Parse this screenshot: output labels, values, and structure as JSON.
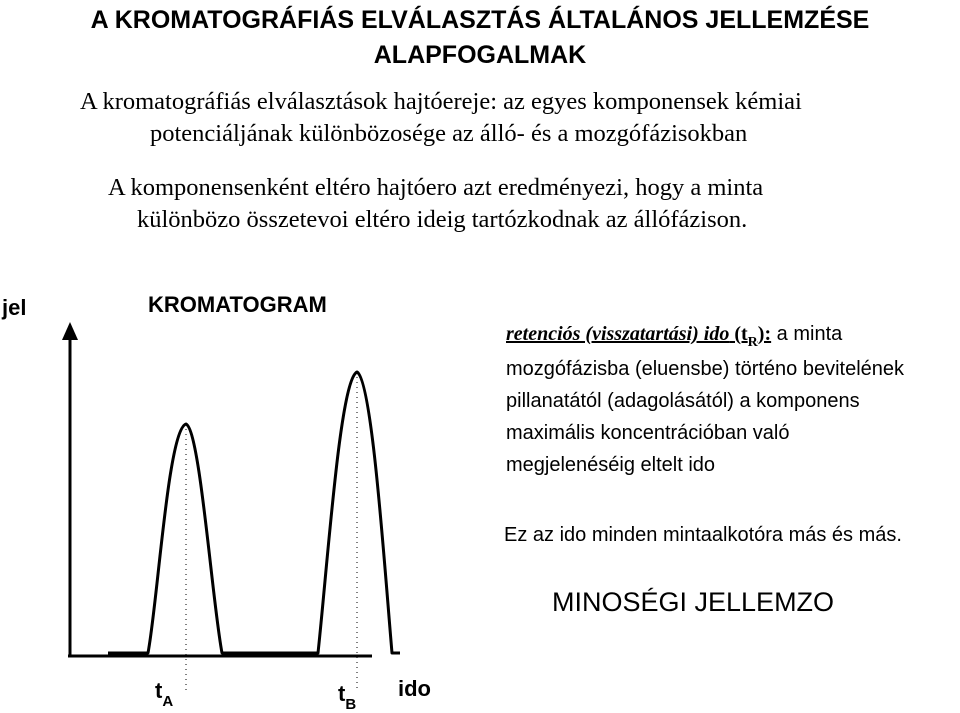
{
  "title": {
    "line1": "A KROMATOGRÁFIÁS ELVÁLASZTÁS ÁLTALÁNOS JELLEMZÉSE",
    "line2": "ALAPFOGALMAK"
  },
  "intro": {
    "p1_line1": "A kromatográfiás elválasztások hajtóereje: az egyes komponensek kémiai",
    "p1_line2": "potenciáljának különbözosége az álló- és a mozgófázisokban",
    "p2_line1": "A komponensenként eltéro hajtóero azt eredményezi, hogy a minta",
    "p2_line2": "különbözo összetevoi eltéro ideig tartózkodnak az állófázison."
  },
  "chromatogram": {
    "title": "KROMATOGRAM",
    "y_axis_label": "jel",
    "x_axis_label": "ido",
    "peak_a_label": "t",
    "peak_a_sub": "A",
    "peak_b_label": "t",
    "peak_b_sub": "B"
  },
  "definition": {
    "term": "retenciós (visszatartási) ido",
    "symbol_open": " (t",
    "symbol_sub": "R",
    "symbol_close": "):",
    "text_line1": " a minta",
    "text_line2": "mozgófázisba (eluensbe) történo bevitelének",
    "text_line3": "pillanatától (adagolásától) a komponens",
    "text_line4": "maximális koncentrációban való",
    "text_line5": "megjelenéséig eltelt ido"
  },
  "note": "Ez az ido minden mintaalkotóra más és más.",
  "quality": "MINOSÉGI JELLEMZO"
}
